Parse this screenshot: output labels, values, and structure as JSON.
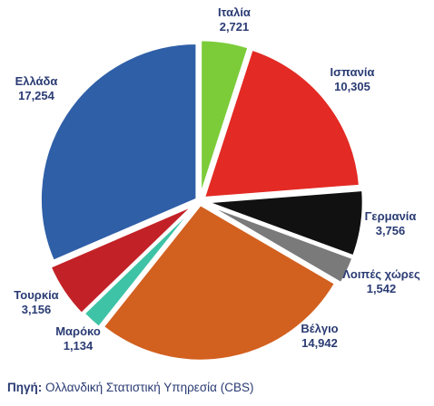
{
  "chart_data": {
    "type": "pie",
    "slices": [
      {
        "label": "Ιταλία",
        "value": 2721,
        "value_label": "2,721",
        "color": "#7ccc3a"
      },
      {
        "label": "Ισπανία",
        "value": 10305,
        "value_label": "10,305",
        "color": "#e32a24"
      },
      {
        "label": "Γερμανία",
        "value": 3756,
        "value_label": "3,756",
        "color": "#111111"
      },
      {
        "label": "Λοιπές χώρες",
        "value": 1542,
        "value_label": "1,542",
        "color": "#7a7a7a"
      },
      {
        "label": "Βέλγιο",
        "value": 14942,
        "value_label": "14,942",
        "color": "#d2601f"
      },
      {
        "label": "Μαρόκο",
        "value": 1134,
        "value_label": "1,134",
        "color": "#3fc3a6"
      },
      {
        "label": "Τουρκία",
        "value": 3156,
        "value_label": "3,156",
        "color": "#c22227"
      },
      {
        "label": "Ελλάδα",
        "value": 17254,
        "value_label": "17,254",
        "color": "#2f5fa7"
      }
    ],
    "start_angle_deg": 0,
    "direction": "clockwise"
  },
  "source": {
    "label": "Πηγή:",
    "text": "Ολλανδική Στατιστική Υπηρεσία (CBS)"
  },
  "colors": {
    "label_text": "#2a3b73",
    "slice_border": "#ffffff"
  }
}
